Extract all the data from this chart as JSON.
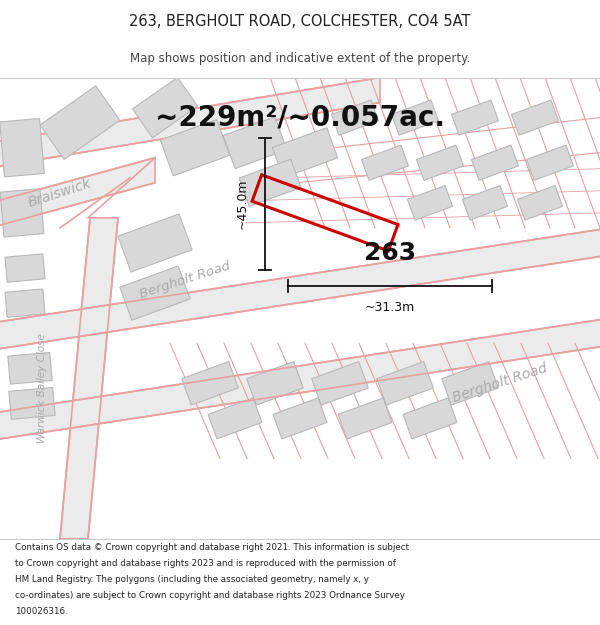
{
  "title": "263, BERGHOLT ROAD, COLCHESTER, CO4 5AT",
  "subtitle": "Map shows position and indicative extent of the property.",
  "area_text": "~229m²/~0.057ac.",
  "footer": "Contains OS data © Crown copyright and database right 2021. This information is subject to Crown copyright and database rights 2023 and is reproduced with the permission of HM Land Registry. The polygons (including the associated geometry, namely x, y co-ordinates) are subject to Crown copyright and database rights 2023 Ordnance Survey 100026316.",
  "bg_color": "#ffffff",
  "map_bg": "#ffffff",
  "road_color": "#e8a0a0",
  "road_fill": "#e8e8e8",
  "building_fill": "#d8d8d8",
  "building_edge": "#b8b8b8",
  "highlight_color": "#cc0000",
  "dim_color": "#111111",
  "dim_width": "~31.3m",
  "dim_height": "~45.0m",
  "label_color": "#aaaaaa",
  "road_label_color": "#aaaaaa"
}
